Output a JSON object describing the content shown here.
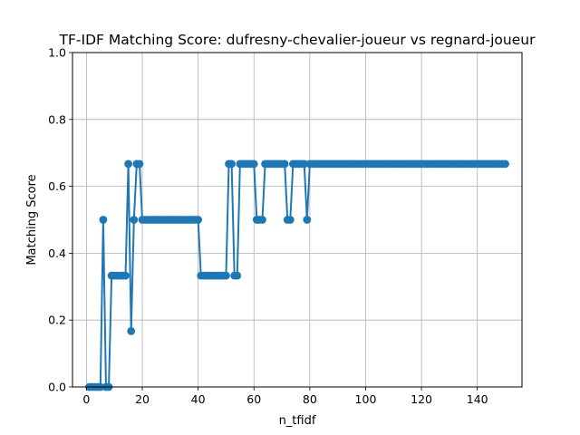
{
  "chart_data": {
    "type": "line",
    "title": "TF-IDF Matching Score: dufresny-chevalier-joueur vs regnard-joueur",
    "xlabel": "n_tfidf",
    "ylabel": "Matching Score",
    "xlim": [
      -5,
      156
    ],
    "ylim": [
      0,
      1
    ],
    "x_ticks": [
      0,
      20,
      40,
      60,
      80,
      100,
      120,
      140
    ],
    "y_ticks": [
      0.0,
      0.2,
      0.4,
      0.6,
      0.8,
      1.0
    ],
    "x_tick_labels": [
      "0",
      "20",
      "40",
      "60",
      "80",
      "100",
      "120",
      "140"
    ],
    "y_tick_labels": [
      "0.0",
      "0.2",
      "0.4",
      "0.6",
      "0.8",
      "1.0"
    ],
    "grid": true,
    "marker": "circle",
    "color": "#1f77b4",
    "series": [
      {
        "x_start": 1,
        "x_step": 1,
        "values": [
          0,
          0,
          0,
          0,
          0,
          0.5,
          0,
          0,
          0.333,
          0.333,
          0.333,
          0.333,
          0.333,
          0.333,
          0.667,
          0.167,
          0.5,
          0.667,
          0.667,
          0.5,
          0.5,
          0.5,
          0.5,
          0.5,
          0.5,
          0.5,
          0.5,
          0.5,
          0.5,
          0.5,
          0.5,
          0.5,
          0.5,
          0.5,
          0.5,
          0.5,
          0.5,
          0.5,
          0.5,
          0.5,
          0.333,
          0.333,
          0.333,
          0.333,
          0.333,
          0.333,
          0.333,
          0.333,
          0.333,
          0.333,
          0.667,
          0.667,
          0.333,
          0.333,
          0.667,
          0.667,
          0.667,
          0.667,
          0.667,
          0.667,
          0.5,
          0.5,
          0.5,
          0.667,
          0.667,
          0.667,
          0.667,
          0.667,
          0.667,
          0.667,
          0.667,
          0.5,
          0.5,
          0.667,
          0.667,
          0.667,
          0.667,
          0.667,
          0.5,
          0.667,
          0.667,
          0.667,
          0.667,
          0.667,
          0.667,
          0.667,
          0.667,
          0.667,
          0.667,
          0.667,
          0.667,
          0.667,
          0.667,
          0.667,
          0.667,
          0.667,
          0.667,
          0.667,
          0.667,
          0.667,
          0.667,
          0.667,
          0.667,
          0.667,
          0.667,
          0.667,
          0.667,
          0.667,
          0.667,
          0.667,
          0.667,
          0.667,
          0.667,
          0.667,
          0.667,
          0.667,
          0.667,
          0.667,
          0.667,
          0.667,
          0.667,
          0.667,
          0.667,
          0.667,
          0.667,
          0.667,
          0.667,
          0.667,
          0.667,
          0.667,
          0.667,
          0.667,
          0.667,
          0.667,
          0.667,
          0.667,
          0.667,
          0.667,
          0.667,
          0.667,
          0.667,
          0.667,
          0.667,
          0.667,
          0.667,
          0.667,
          0.667,
          0.667,
          0.667,
          0.667
        ]
      }
    ]
  }
}
